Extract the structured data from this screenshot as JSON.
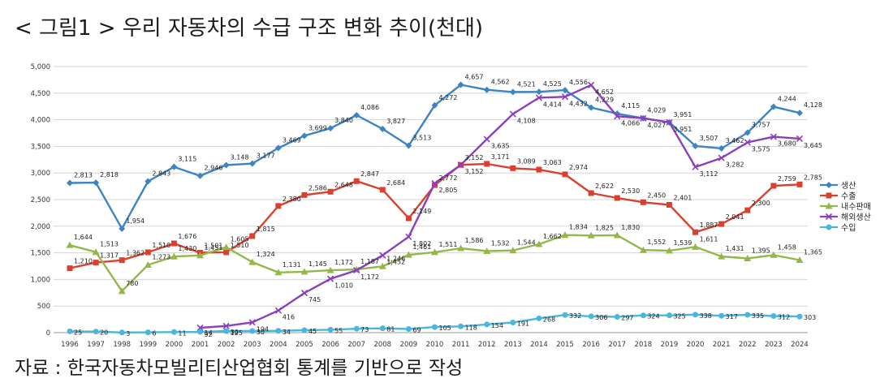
{
  "title": "< 그림1 > 우리 자동차의 수급 구조 변화 추이(천대)",
  "source": "자료 : 한국자동차모빌리티산업협회 통계를 기반으로 작성",
  "chart_data": {
    "type": "line",
    "title": "< 그림1 > 우리 자동차의 수급 구조 변화 추이(천대)",
    "xlabel": "",
    "ylabel": "",
    "ylim": [
      0,
      5000
    ],
    "yticks": [
      0,
      500,
      1000,
      1500,
      2000,
      2500,
      3000,
      3500,
      4000,
      4500,
      5000
    ],
    "ytick_labels": [
      "0",
      "500",
      "1,000",
      "1,500",
      "2,000",
      "2,500",
      "3,000",
      "3,500",
      "4,000",
      "4,500",
      "5,000"
    ],
    "grid": true,
    "legend": "right",
    "x": [
      "1996",
      "1997",
      "1998",
      "1999",
      "2000",
      "2001",
      "2002",
      "2003",
      "2004",
      "2005",
      "2006",
      "2007",
      "2008",
      "2009",
      "2010",
      "2011",
      "2012",
      "2013",
      "2014",
      "2015",
      "2016",
      "2017",
      "2018",
      "2019",
      "2020",
      "2021",
      "2022",
      "2023",
      "2024"
    ],
    "series": [
      {
        "name": "생산",
        "color": "#3c84c4",
        "marker": "diamond",
        "values": [
          2813,
          2818,
          1954,
          2843,
          3115,
          2946,
          3148,
          3177,
          3469,
          3699,
          3840,
          4086,
          3827,
          3513,
          4272,
          4657,
          4562,
          4521,
          4525,
          4556,
          4229,
          4115,
          4029,
          3951,
          3507,
          3462,
          3757,
          4244,
          4128
        ],
        "labels": [
          "2,813",
          "2,818",
          "1,954",
          "2,843",
          "3,115",
          "2,946",
          "3,148",
          "3,177",
          "3,469",
          "3,699",
          "3,840",
          "4,086",
          "3,827",
          "3,513",
          "4,272",
          "4,657",
          "4,562",
          "4,521",
          "4,525",
          "4,556",
          "4,229",
          "4,115",
          "4,029",
          "3,951",
          "3,507",
          "3,462",
          "3,757",
          "4,244",
          "4,128"
        ]
      },
      {
        "name": "수출",
        "color": "#d9412e",
        "marker": "square",
        "values": [
          1210,
          1317,
          1362,
          1510,
          1676,
          1501,
          1510,
          1815,
          2380,
          2586,
          2648,
          2847,
          2684,
          2149,
          2772,
          3152,
          3171,
          3089,
          3063,
          2974,
          2622,
          2530,
          2450,
          2401,
          1887,
          2041,
          2300,
          2759,
          2785
        ],
        "labels": [
          "1,210",
          "1,317",
          "1,362",
          "1,510",
          "1,676",
          "1,501",
          "1,510",
          "1,815",
          "2,380",
          "2,586",
          "2,648",
          "2,847",
          "2,684",
          "2,149",
          "2,772",
          "3,152",
          "3,171",
          "3,089",
          "3,063",
          "2,974",
          "2,622",
          "2,530",
          "2,450",
          "2,401",
          "1,887",
          "2,041",
          "2,300",
          "2,759",
          "2,785"
        ]
      },
      {
        "name": "내수판매",
        "color": "#93b84a",
        "marker": "triangle",
        "values": [
          1644,
          1513,
          780,
          1273,
          1430,
          1451,
          1605,
          1324,
          1131,
          1145,
          1172,
          1187,
          1246,
          1461,
          1511,
          1586,
          1532,
          1544,
          1662,
          1834,
          1825,
          1830,
          1552,
          1539,
          1611,
          1431,
          1395,
          1458,
          1365
        ],
        "labels": [
          "1,644",
          "1,513",
          "780",
          "1,273",
          "1,430",
          "1,451",
          "1,605",
          "1,324",
          "1,131",
          "1,145",
          "1,172",
          "1,187",
          "1,246",
          "1,461",
          "1,511",
          "1,586",
          "1,532",
          "1,544",
          "1,662",
          "1,834",
          "1,825",
          "1,830",
          "1,552",
          "1,539",
          "1,611",
          "1,431",
          "1,395",
          "1,458",
          "1,365"
        ]
      },
      {
        "name": "해외생산",
        "color": "#8a3fbd",
        "marker": "x",
        "values": [
          null,
          null,
          null,
          null,
          null,
          92,
          125,
          194,
          416,
          745,
          1010,
          1172,
          1452,
          1802,
          2805,
          3152,
          3635,
          4108,
          4414,
          4432,
          4652,
          4066,
          4027,
          3951,
          3112,
          3282,
          3575,
          3680,
          3645
        ],
        "labels": [
          "",
          "",
          "",
          "",
          "",
          "92",
          "125",
          "194",
          "416",
          "745",
          "1,010",
          "1,172",
          "1,452",
          "1,802",
          "2,805",
          "3,152",
          "3,635",
          "4,108",
          "4,414",
          "4,432",
          "4,652",
          "4,066",
          "4,027",
          "3,951",
          "3,112",
          "3,282",
          "3,575",
          "3,680",
          "3,645"
        ]
      },
      {
        "name": "수입",
        "color": "#4bb6dd",
        "marker": "circle",
        "values": [
          25,
          20,
          3,
          6,
          11,
          14,
          30,
          30,
          34,
          45,
          55,
          73,
          81,
          69,
          105,
          118,
          154,
          191,
          268,
          332,
          306,
          297,
          324,
          325,
          338,
          317,
          335,
          312,
          303
        ],
        "labels": [
          "25",
          "20",
          "3",
          "6",
          "11",
          "14",
          "30",
          "30",
          "34",
          "45",
          "55",
          "73",
          "81",
          "69",
          "105",
          "118",
          "154",
          "191",
          "268",
          "332",
          "306",
          "297",
          "324",
          "325",
          "338",
          "317",
          "335",
          "312",
          "303"
        ]
      }
    ]
  }
}
